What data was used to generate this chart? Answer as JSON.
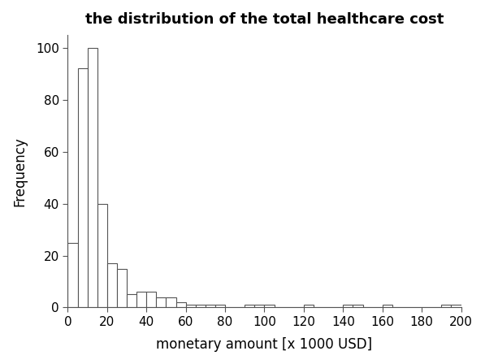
{
  "title": "the distribution of the total healthcare cost",
  "xlabel": "monetary amount [x 1000 USD]",
  "ylabel": "Frequency",
  "bar_edges": [
    0,
    5,
    10,
    15,
    20,
    25,
    30,
    35,
    40,
    45,
    50,
    55,
    60,
    65,
    70,
    75,
    80,
    85,
    90,
    95,
    100,
    105,
    110,
    115,
    120,
    125,
    130,
    135,
    140,
    145,
    150,
    155,
    160,
    165,
    170,
    175,
    180,
    185,
    190,
    195,
    200
  ],
  "frequencies": [
    25,
    92,
    100,
    40,
    17,
    15,
    5,
    6,
    6,
    4,
    4,
    2,
    1,
    1,
    1,
    1,
    0,
    0,
    1,
    1,
    1,
    0,
    0,
    0,
    1,
    0,
    0,
    0,
    1,
    1,
    0,
    0,
    1,
    0,
    0,
    0,
    0,
    0,
    1,
    1
  ],
  "xlim": [
    0,
    200
  ],
  "ylim": [
    0,
    105
  ],
  "xticks": [
    0,
    20,
    40,
    60,
    80,
    100,
    120,
    140,
    160,
    180,
    200
  ],
  "yticks": [
    0,
    20,
    40,
    60,
    80,
    100
  ],
  "bar_color": "#ffffff",
  "bar_edgecolor": "#555555",
  "title_fontsize": 13,
  "label_fontsize": 12,
  "tick_fontsize": 11,
  "background_color": "#ffffff"
}
